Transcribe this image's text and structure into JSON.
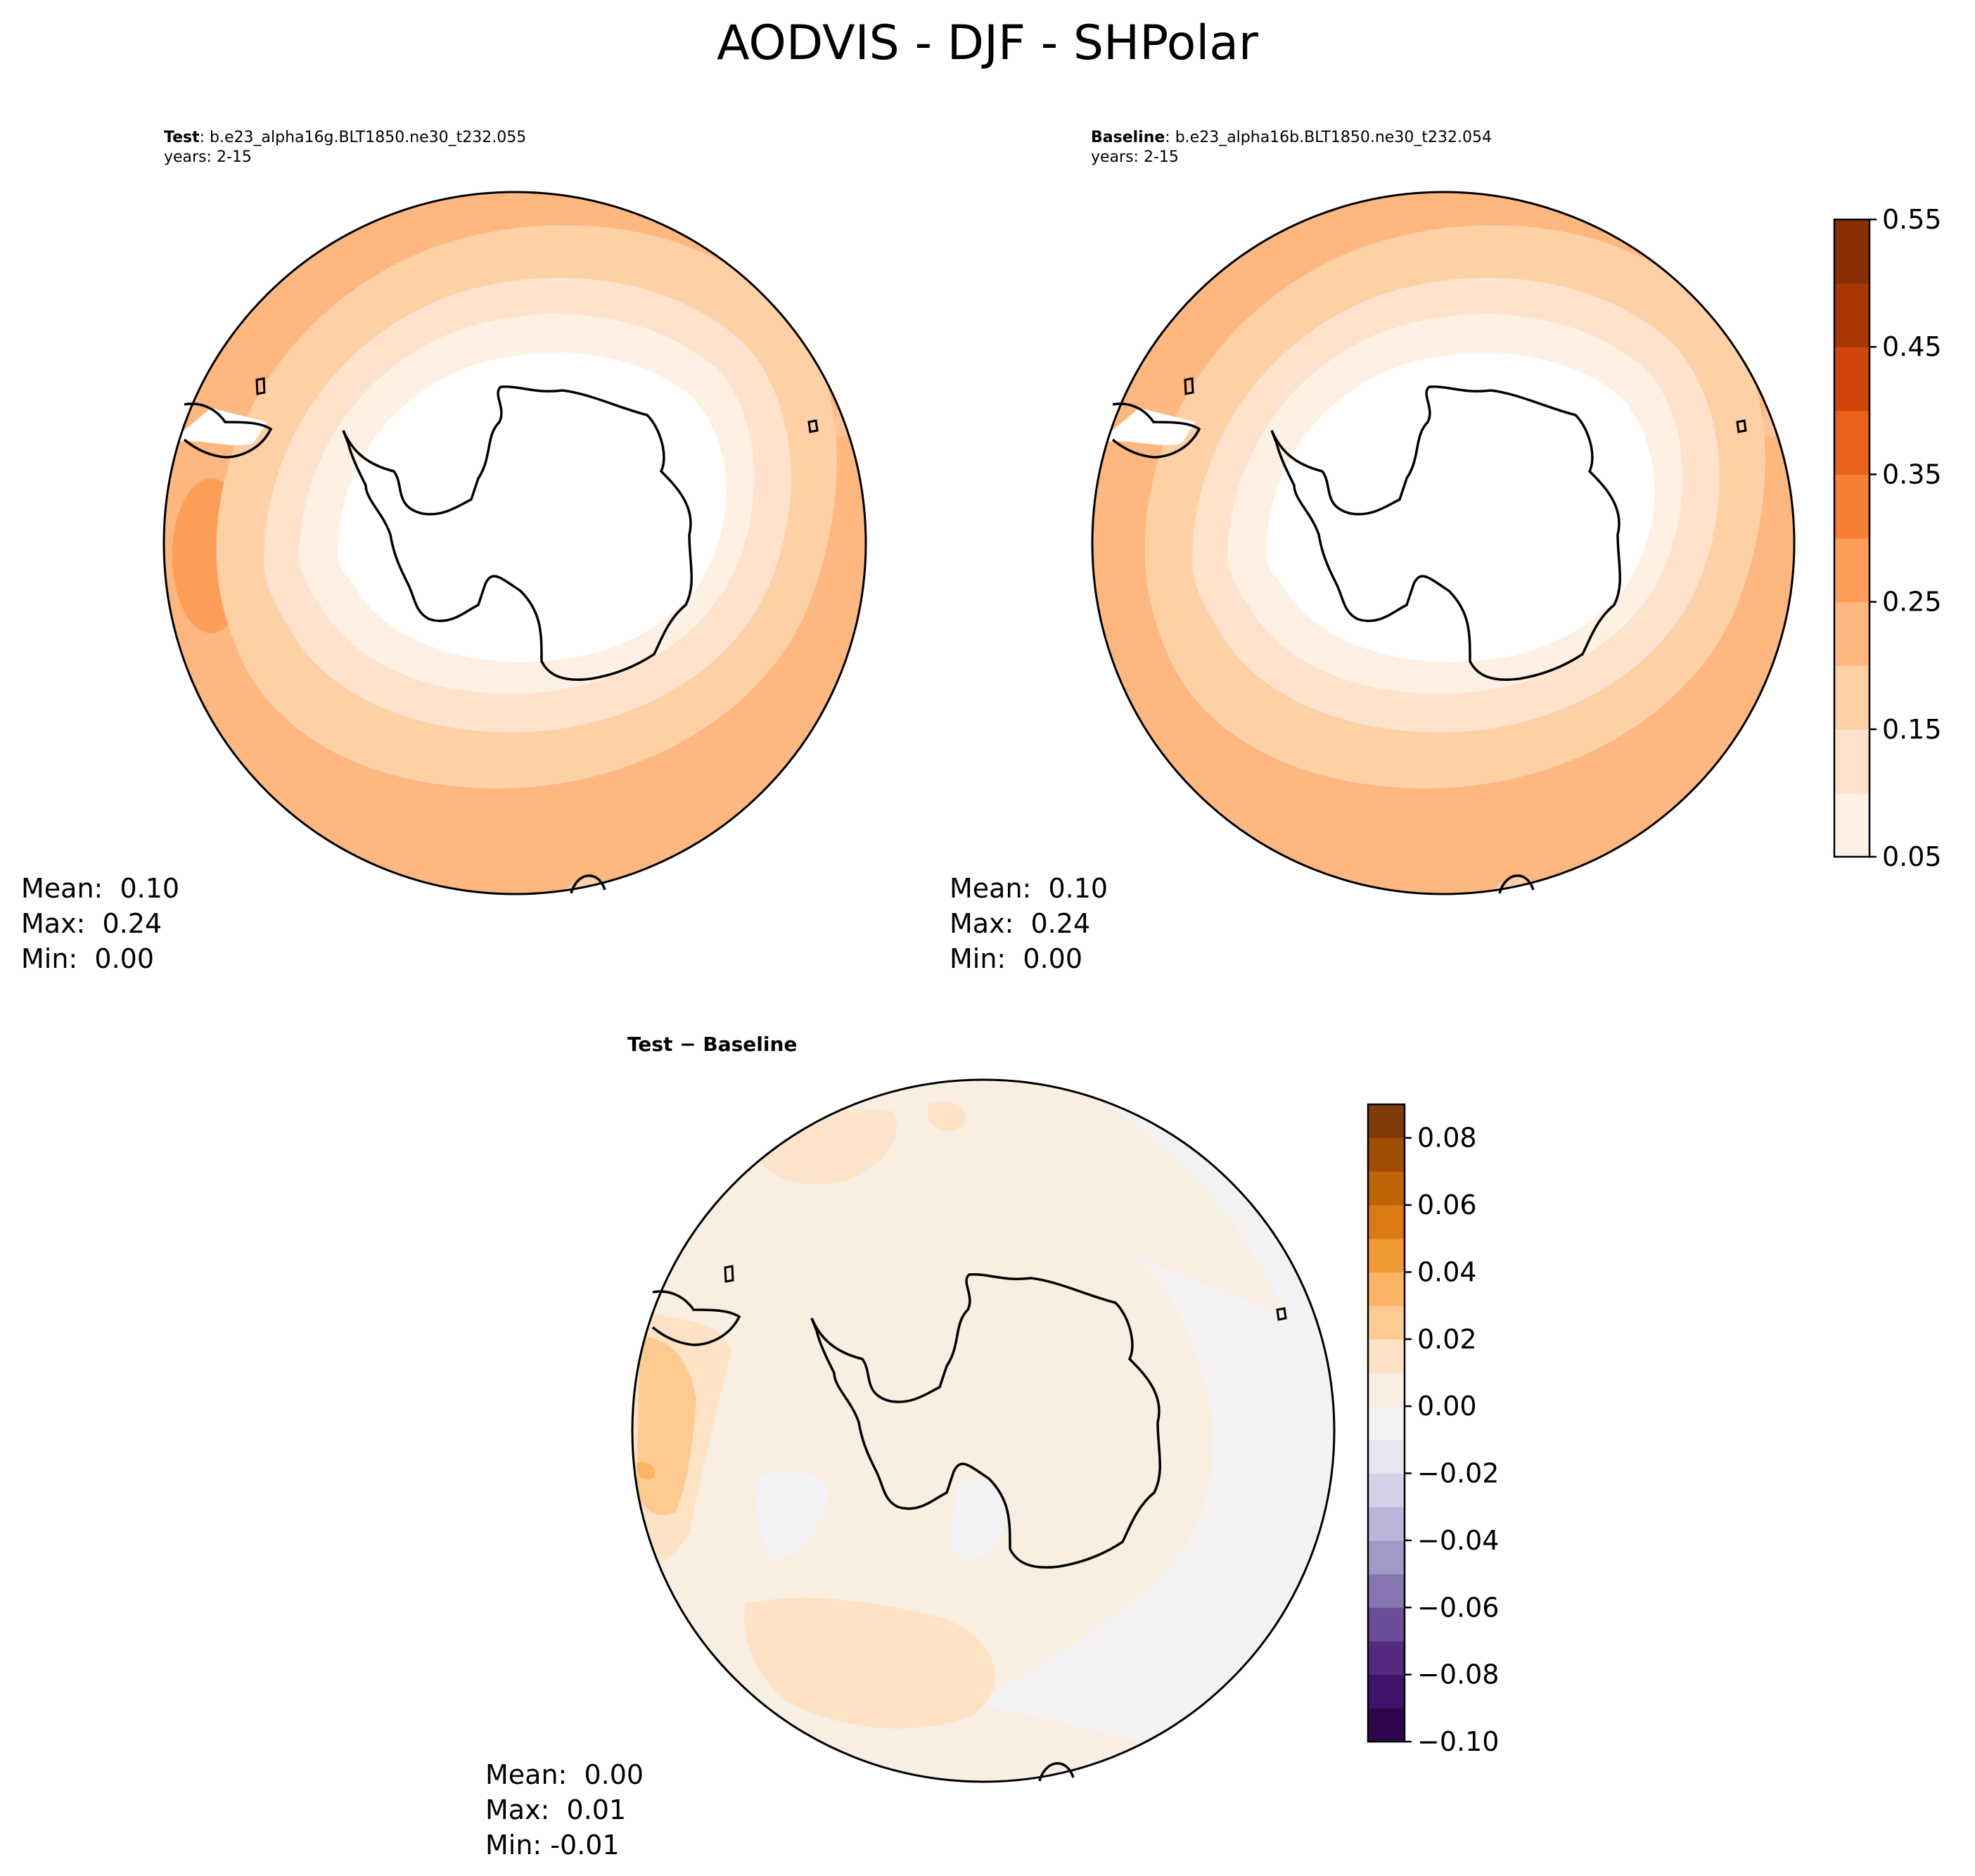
{
  "title": "AODVIS - DJF - SHPolar",
  "panels": {
    "test": {
      "label": "Test",
      "case": ": b.e23_alpha16g.BLT1850.ne30_t232.055",
      "years": "years: 2-15",
      "stats": {
        "mean": "Mean:  0.10",
        "max": "Max:  0.24",
        "min": "Min:  0.00"
      }
    },
    "baseline": {
      "label": "Baseline",
      "case": ": b.e23_alpha16b.BLT1850.ne30_t232.054",
      "years": "years: 2-15",
      "stats": {
        "mean": "Mean:  0.10",
        "max": "Max:  0.24",
        "min": "Min:  0.00"
      }
    },
    "diff": {
      "label": "Test − Baseline",
      "stats": {
        "mean": "Mean:  0.00",
        "max": "Max:  0.01",
        "min": "Min: -0.01"
      }
    }
  },
  "chart_data": [
    {
      "type": "heatmap",
      "panel": "test",
      "projection": "south-polar-stereographic",
      "colormap": "Oranges",
      "levels": [
        0.05,
        0.1,
        0.15,
        0.2,
        0.25,
        0.3,
        0.35,
        0.4,
        0.45,
        0.5,
        0.55
      ],
      "colorbar_ticks": [
        "0.05",
        "0.15",
        "0.25",
        "0.35",
        "0.45",
        "0.55"
      ],
      "mean": 0.1,
      "max": 0.24,
      "min": 0.0
    },
    {
      "type": "heatmap",
      "panel": "baseline",
      "projection": "south-polar-stereographic",
      "colormap": "Oranges",
      "levels": [
        0.05,
        0.1,
        0.15,
        0.2,
        0.25,
        0.3,
        0.35,
        0.4,
        0.45,
        0.5,
        0.55
      ],
      "mean": 0.1,
      "max": 0.24,
      "min": 0.0
    },
    {
      "type": "heatmap",
      "panel": "diff",
      "projection": "south-polar-stereographic",
      "colormap": "PuOr_r",
      "levels": [
        -0.1,
        -0.09,
        -0.08,
        -0.07,
        -0.06,
        -0.05,
        -0.04,
        -0.03,
        -0.02,
        -0.01,
        0.0,
        0.01,
        0.02,
        0.03,
        0.04,
        0.05,
        0.06,
        0.07,
        0.08,
        0.09
      ],
      "colorbar_ticks": [
        "0.08",
        "0.06",
        "0.04",
        "0.02",
        "0.00",
        "−0.02",
        "−0.04",
        "−0.06",
        "−0.08",
        "−0.10"
      ],
      "mean": 0.0,
      "max": 0.01,
      "min": -0.01
    }
  ],
  "colors": {
    "oranges": [
      "#fff0e4",
      "#fee2cc",
      "#fdd0a6",
      "#fdb77f",
      "#fd9e57",
      "#f77f35",
      "#e8621a",
      "#d3460b",
      "#a93703",
      "#892f05"
    ],
    "puor": [
      "#2d064b",
      "#40136b",
      "#532a80",
      "#6b4e99",
      "#8675b0",
      "#a19ac7",
      "#bcb5da",
      "#d4d1e7",
      "#e6e6ef",
      "#f2f1f3",
      "#f8eee2",
      "#fde2c4",
      "#fdcb90",
      "#fbb464",
      "#ef9a34",
      "#db7b11",
      "#c06408",
      "#a14f06",
      "#7f3b08"
    ]
  }
}
